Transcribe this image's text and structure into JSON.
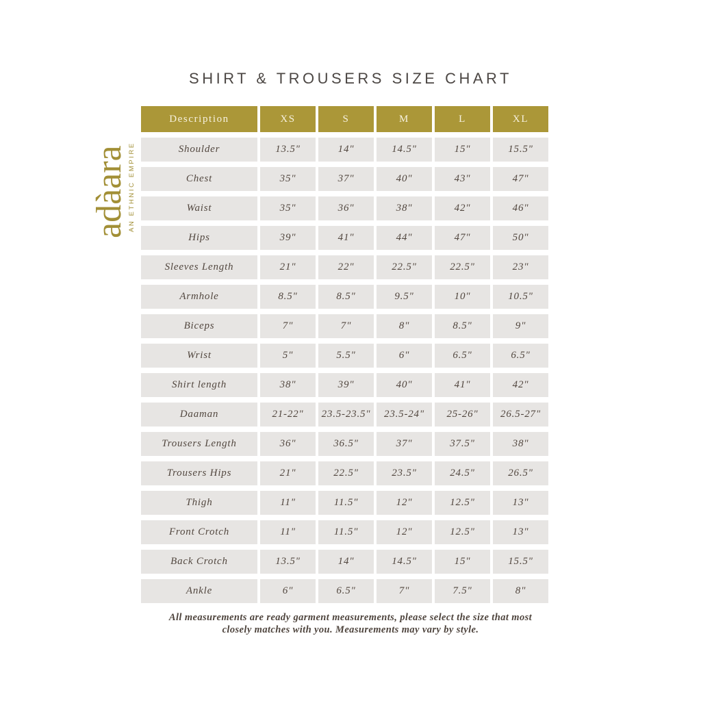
{
  "title": "SHIRT & TROUSERS SIZE CHART",
  "logo": {
    "brand": "adàara",
    "tagline": "AN ETHNIC EMPIRE"
  },
  "table": {
    "columns": [
      "Description",
      "XS",
      "S",
      "M",
      "L",
      "XL"
    ],
    "rows": [
      {
        "label": "Shoulder",
        "values": [
          "13.5\"",
          "14\"",
          "14.5\"",
          "15\"",
          "15.5\""
        ]
      },
      {
        "label": "Chest",
        "values": [
          "35\"",
          "37\"",
          "40\"",
          "43\"",
          "47\""
        ]
      },
      {
        "label": "Waist",
        "values": [
          "35\"",
          "36\"",
          "38\"",
          "42\"",
          "46\""
        ]
      },
      {
        "label": "Hips",
        "values": [
          "39\"",
          "41\"",
          "44\"",
          "47\"",
          "50\""
        ]
      },
      {
        "label": "Sleeves Length",
        "values": [
          "21\"",
          "22\"",
          "22.5\"",
          "22.5\"",
          "23\""
        ]
      },
      {
        "label": "Armhole",
        "values": [
          "8.5\"",
          "8.5\"",
          "9.5\"",
          "10\"",
          "10.5\""
        ]
      },
      {
        "label": "Biceps",
        "values": [
          "7\"",
          "7\"",
          "8\"",
          "8.5\"",
          "9\""
        ]
      },
      {
        "label": "Wrist",
        "values": [
          "5\"",
          "5.5\"",
          "6\"",
          "6.5\"",
          "6.5\""
        ]
      },
      {
        "label": "Shirt length",
        "values": [
          "38\"",
          "39\"",
          "40\"",
          "41\"",
          "42\""
        ]
      },
      {
        "label": "Daaman",
        "values": [
          "21-22\"",
          "23.5-23.5\"",
          "23.5-24\"",
          "25-26\"",
          "26.5-27\""
        ]
      },
      {
        "label": "Trousers Length",
        "values": [
          "36\"",
          "36.5\"",
          "37\"",
          "37.5\"",
          "38\""
        ]
      },
      {
        "label": "Trousers Hips",
        "values": [
          "21\"",
          "22.5\"",
          "23.5\"",
          "24.5\"",
          "26.5\""
        ]
      },
      {
        "label": "Thigh",
        "values": [
          "11\"",
          "11.5\"",
          "12\"",
          "12.5\"",
          "13\""
        ]
      },
      {
        "label": "Front Crotch",
        "values": [
          "11\"",
          "11.5\"",
          "12\"",
          "12.5\"",
          "13\""
        ]
      },
      {
        "label": "Back Crotch",
        "values": [
          "13.5\"",
          "14\"",
          "14.5\"",
          "15\"",
          "15.5\""
        ]
      },
      {
        "label": "Ankle",
        "values": [
          "6\"",
          "6.5\"",
          "7\"",
          "7.5\"",
          "8\""
        ]
      }
    ]
  },
  "footer": {
    "line1": "All measurements are ready garment measurements, please select the size that most",
    "line2": "closely matches with you. Measurements may vary by style."
  },
  "colors": {
    "accent_gold": "#ab9738",
    "cell_background": "#e7e5e3",
    "header_text": "#f7f2e0",
    "title_text": "#4c4744",
    "body_text": "#52473f"
  }
}
